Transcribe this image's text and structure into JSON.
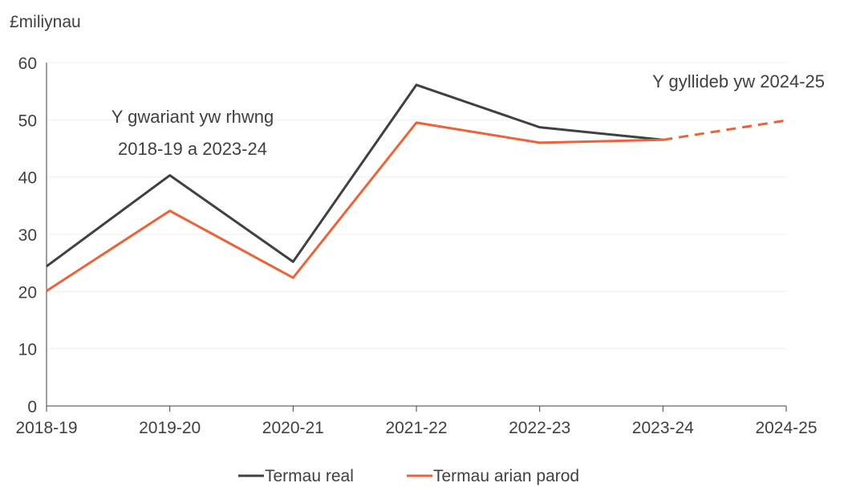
{
  "chart_data": {
    "type": "line",
    "ylabel": "£miliynau",
    "categories": [
      "2018-19",
      "2019-20",
      "2020-21",
      "2021-22",
      "2022-23",
      "2023-24",
      "2024-25"
    ],
    "ylim": [
      0,
      60
    ],
    "yticks": [
      0,
      10,
      20,
      30,
      40,
      50,
      60
    ],
    "grid": true,
    "legend_position": "bottom",
    "series": [
      {
        "name": "Termau real",
        "color": "#404040",
        "values": [
          24.4,
          40.3,
          25.2,
          56.1,
          48.7,
          46.5,
          null
        ]
      },
      {
        "name": "Termau arian parod",
        "color": "#EE6237",
        "values": [
          20.1,
          34.1,
          22.4,
          49.5,
          46.0,
          46.5,
          49.9
        ],
        "dashed_from_index": 5
      }
    ],
    "annotations": [
      {
        "lines": [
          "Y gwariant yw rhwng",
          "2018-19 a 2023-24"
        ]
      },
      {
        "lines": [
          "Y gyllideb yw 2024-25"
        ]
      }
    ]
  }
}
